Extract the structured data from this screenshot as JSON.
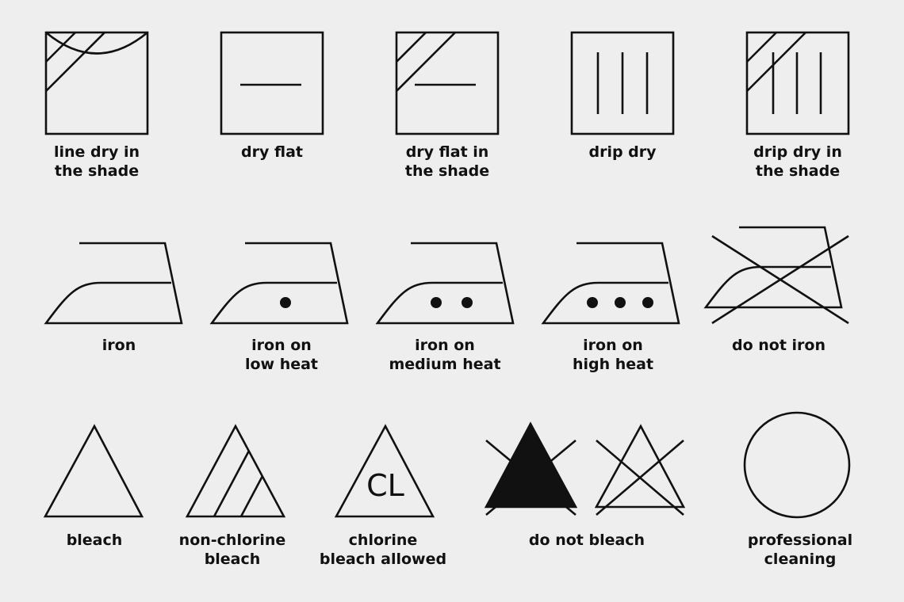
{
  "symbols": [
    {
      "icon": "line-dry-in-shade-icon",
      "lines": [
        "line dry in",
        "the shade"
      ]
    },
    {
      "icon": "dry-flat-icon",
      "lines": [
        "dry flat"
      ]
    },
    {
      "icon": "dry-flat-in-shade-icon",
      "lines": [
        "dry flat in",
        "the shade"
      ]
    },
    {
      "icon": "drip-dry-icon",
      "lines": [
        "drip dry"
      ]
    },
    {
      "icon": "drip-dry-in-shade-icon",
      "lines": [
        "drip dry in",
        "the shade"
      ]
    },
    {
      "icon": "iron-icon",
      "lines": [
        "iron"
      ]
    },
    {
      "icon": "iron-low-heat-icon",
      "lines": [
        "iron on",
        "low heat"
      ]
    },
    {
      "icon": "iron-medium-heat-icon",
      "lines": [
        "iron on",
        "medium heat"
      ]
    },
    {
      "icon": "iron-high-heat-icon",
      "lines": [
        "iron on",
        "high heat"
      ]
    },
    {
      "icon": "do-not-iron-icon",
      "lines": [
        "do not iron"
      ]
    },
    {
      "icon": "bleach-icon",
      "lines": [
        "bleach"
      ]
    },
    {
      "icon": "non-chlorine-bleach-icon",
      "lines": [
        "non-chlorine",
        "bleach"
      ]
    },
    {
      "icon": "chlorine-bleach-allowed-icon",
      "lines": [
        "chlorine",
        "bleach allowed"
      ],
      "mark": "CL"
    },
    {
      "icon": "do-not-bleach-icon",
      "lines": [
        "do not bleach"
      ]
    },
    {
      "icon": "professional-cleaning-icon",
      "lines": [
        "professional",
        "cleaning"
      ]
    }
  ],
  "colors": {
    "background": "#eeeeee",
    "ink": "#111111"
  }
}
